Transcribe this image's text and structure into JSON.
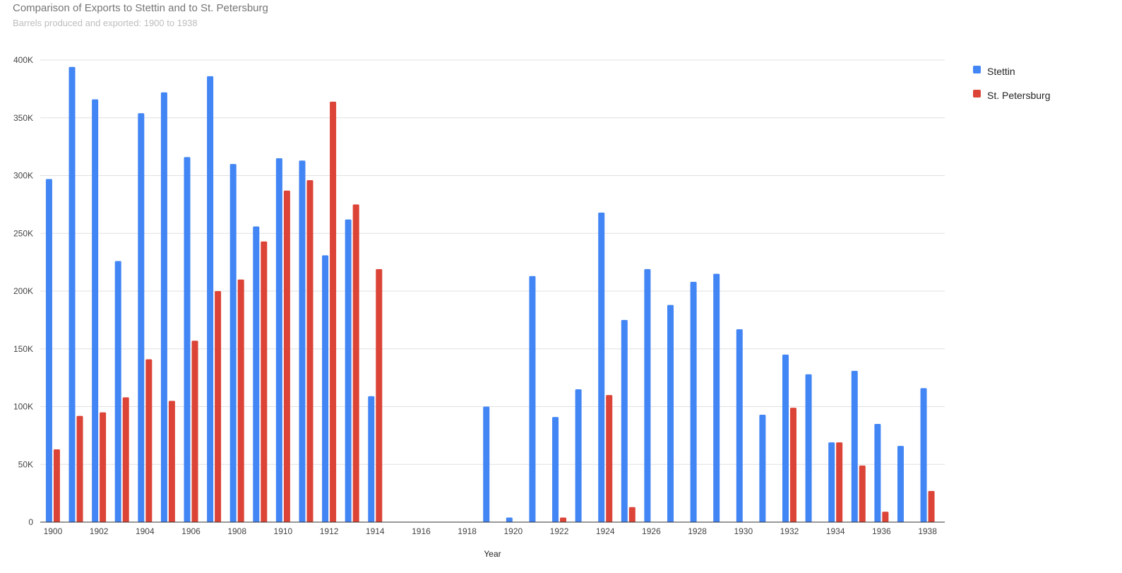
{
  "chart_data": {
    "type": "bar",
    "title": "Comparison of Exports to Stettin and to St. Petersburg",
    "subtitle": "Barrels produced and exported: 1900 to 1938",
    "xlabel": "Year",
    "ylabel": "",
    "ylim": [
      0,
      400000
    ],
    "yticks": [
      0,
      50000,
      100000,
      150000,
      200000,
      250000,
      300000,
      350000,
      400000
    ],
    "ytick_labels": [
      "0",
      "50K",
      "100K",
      "150K",
      "200K",
      "250K",
      "300K",
      "350K",
      "400K"
    ],
    "grid": true,
    "legend_position": "right",
    "categories": [
      "1900",
      "1901",
      "1902",
      "1903",
      "1904",
      "1905",
      "1906",
      "1907",
      "1908",
      "1909",
      "1910",
      "1911",
      "1912",
      "1913",
      "1914",
      "1915",
      "1916",
      "1917",
      "1918",
      "1919",
      "1920",
      "1921",
      "1922",
      "1923",
      "1924",
      "1925",
      "1926",
      "1927",
      "1928",
      "1929",
      "1930",
      "1931",
      "1932",
      "1933",
      "1934",
      "1935",
      "1936",
      "1937",
      "1938"
    ],
    "xtick_labels": [
      "1900",
      "1902",
      "1904",
      "1906",
      "1908",
      "1910",
      "1912",
      "1914",
      "1916",
      "1918",
      "1920",
      "1922",
      "1924",
      "1926",
      "1928",
      "1930",
      "1932",
      "1934",
      "1936",
      "1938"
    ],
    "series": [
      {
        "name": "Stettin",
        "color": "#4285f4",
        "values": [
          297000,
          394000,
          366000,
          226000,
          354000,
          372000,
          316000,
          386000,
          310000,
          256000,
          315000,
          313000,
          231000,
          262000,
          109000,
          0,
          0,
          0,
          0,
          100000,
          4000,
          213000,
          91000,
          115000,
          268000,
          175000,
          219000,
          188000,
          208000,
          215000,
          167000,
          93000,
          145000,
          128000,
          69000,
          131000,
          85000,
          66000,
          116000
        ]
      },
      {
        "name": "St. Petersburg",
        "color": "#db4437",
        "values": [
          63000,
          92000,
          95000,
          108000,
          141000,
          105000,
          157000,
          200000,
          210000,
          243000,
          287000,
          296000,
          364000,
          275000,
          219000,
          0,
          0,
          0,
          0,
          0,
          0,
          0,
          4000,
          0,
          110000,
          13000,
          0,
          0,
          0,
          0,
          0,
          0,
          99000,
          0,
          69000,
          49000,
          9000,
          0,
          27000
        ]
      }
    ]
  }
}
